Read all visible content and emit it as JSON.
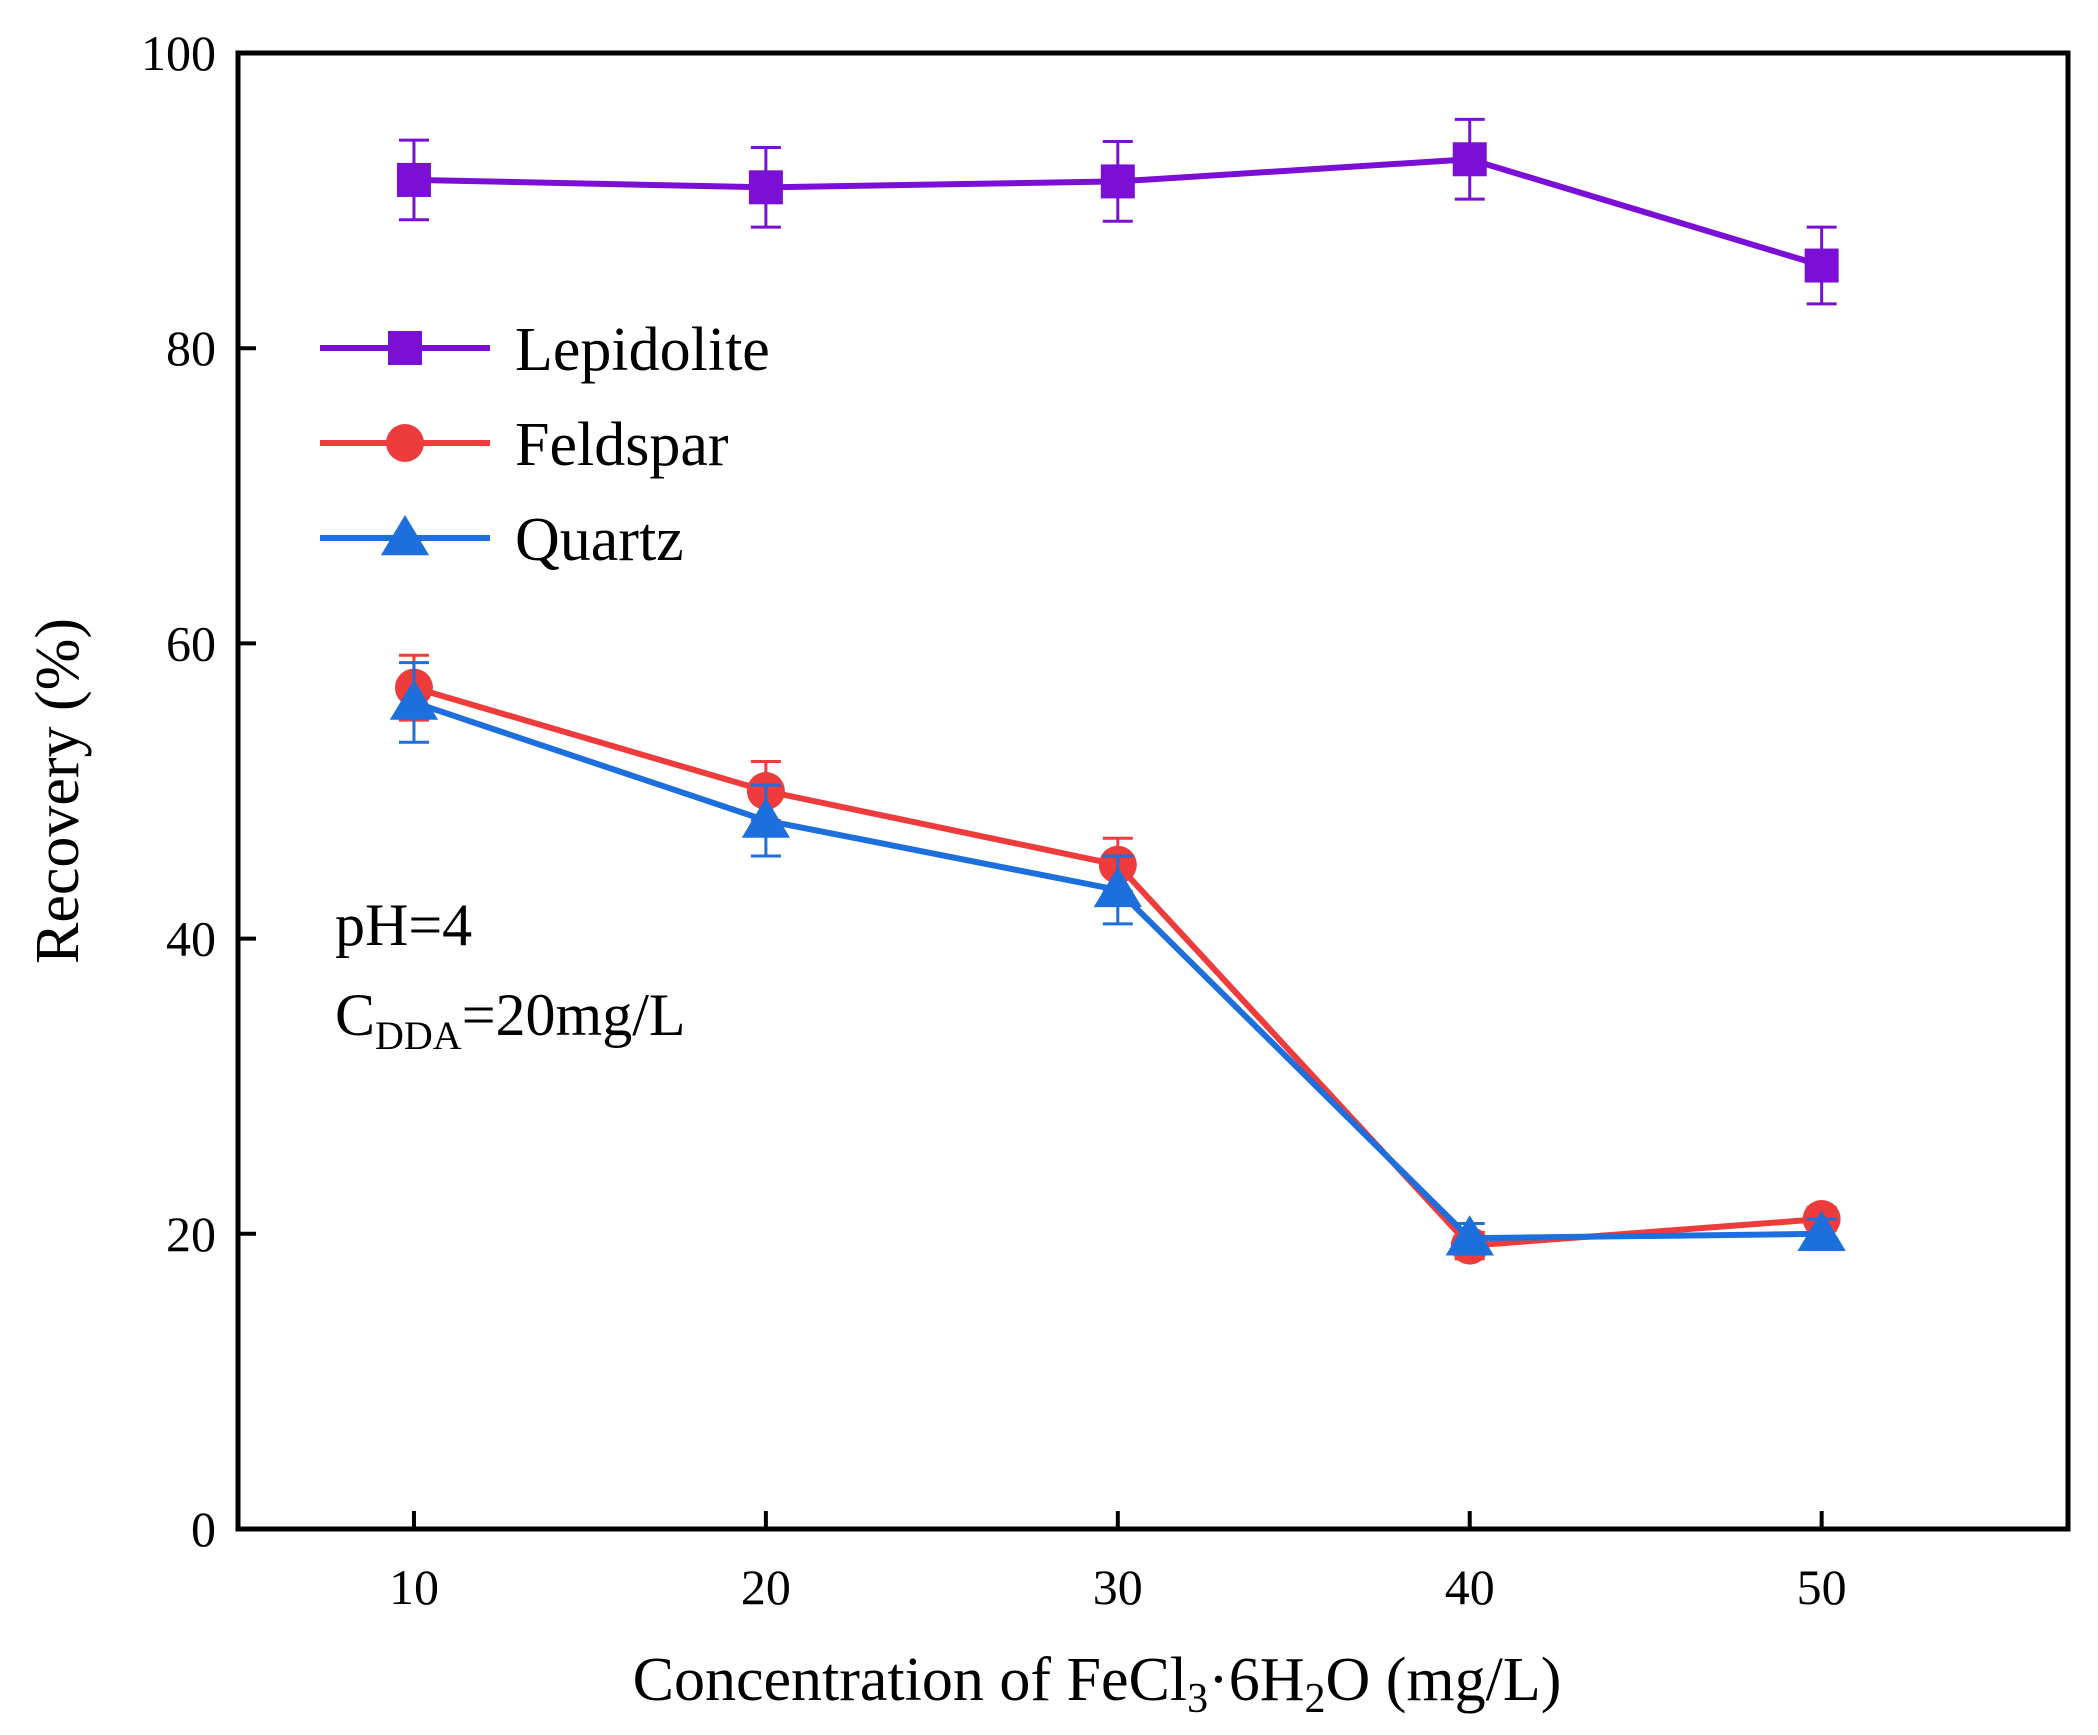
{
  "chart_data": {
    "type": "line",
    "xlabel": {
      "main": "Concentration of FeCl",
      "sub1": "3",
      "mid": "·6H",
      "sub2": "2",
      "end": "O (mg/L)"
    },
    "ylabel": "Recovery (%)",
    "x": [
      10,
      20,
      30,
      40,
      50
    ],
    "x_ticks": [
      "10",
      "20",
      "30",
      "40",
      "50"
    ],
    "xlim": [
      5,
      57
    ],
    "y_ticks": [
      "0",
      "20",
      "40",
      "60",
      "80",
      "100"
    ],
    "ylim": [
      0,
      100
    ],
    "legend_position": "upper-left",
    "annotations": {
      "ph": "pH=4",
      "conc_main": "C",
      "conc_sub": "DDA",
      "conc_value": "=20mg/L"
    },
    "series": [
      {
        "name": "Lepidolite",
        "color": "#7B0FD6",
        "marker": "square",
        "values": [
          91.4,
          90.9,
          91.3,
          92.8,
          85.6
        ],
        "errors": [
          2.7,
          2.7,
          2.7,
          2.7,
          2.6
        ]
      },
      {
        "name": "Feldspar",
        "color": "#EE3B3B",
        "marker": "circle",
        "values": [
          57.0,
          50.0,
          45.0,
          19.2,
          21.0
        ],
        "errors": [
          2.2,
          2.0,
          1.8,
          0.9,
          0.8
        ]
      },
      {
        "name": "Quartz",
        "color": "#1C6FDC",
        "marker": "triangle",
        "values": [
          56.0,
          48.0,
          43.3,
          19.7,
          20.0
        ],
        "errors": [
          2.7,
          2.4,
          2.3,
          1.0,
          1.0
        ]
      }
    ]
  }
}
